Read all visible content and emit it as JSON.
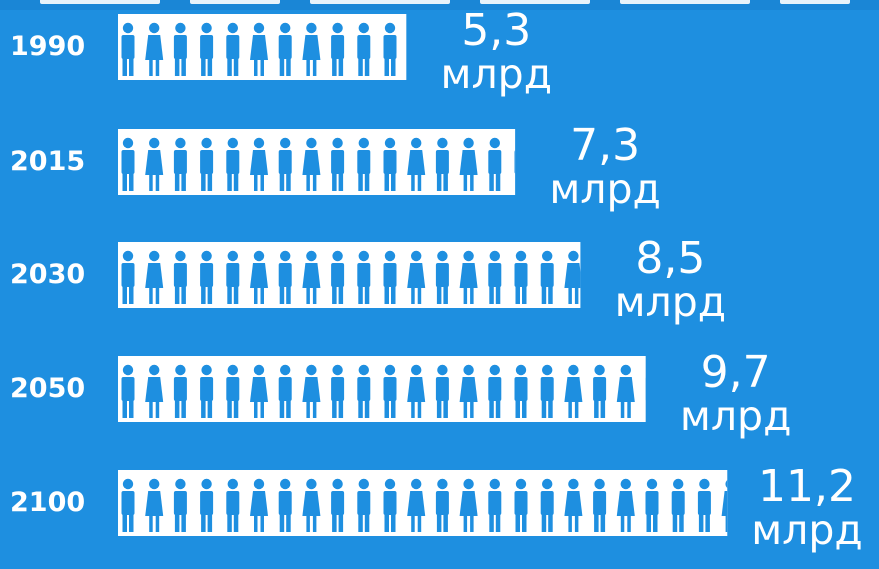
{
  "colors": {
    "background": "#1e8fe0",
    "figure_bg": "#ffffff",
    "figure_fg": "#1e8fe0",
    "text": "#ffffff"
  },
  "chart_data": {
    "type": "bar",
    "orientation": "horizontal",
    "mark": "pictogram-people",
    "unit": "млрд",
    "categories": [
      "1990",
      "2015",
      "2030",
      "2050",
      "2100"
    ],
    "values": [
      5.3,
      7.3,
      8.5,
      9.7,
      11.2
    ],
    "value_labels": [
      "5,3",
      "7,3",
      "8,5",
      "9,7",
      "11,2"
    ],
    "unit_labels": [
      "млрд",
      "млрд",
      "млрд",
      "млрд",
      "млрд"
    ],
    "title": "",
    "xlabel": "",
    "ylabel": "",
    "legend": "none",
    "grid": false
  }
}
